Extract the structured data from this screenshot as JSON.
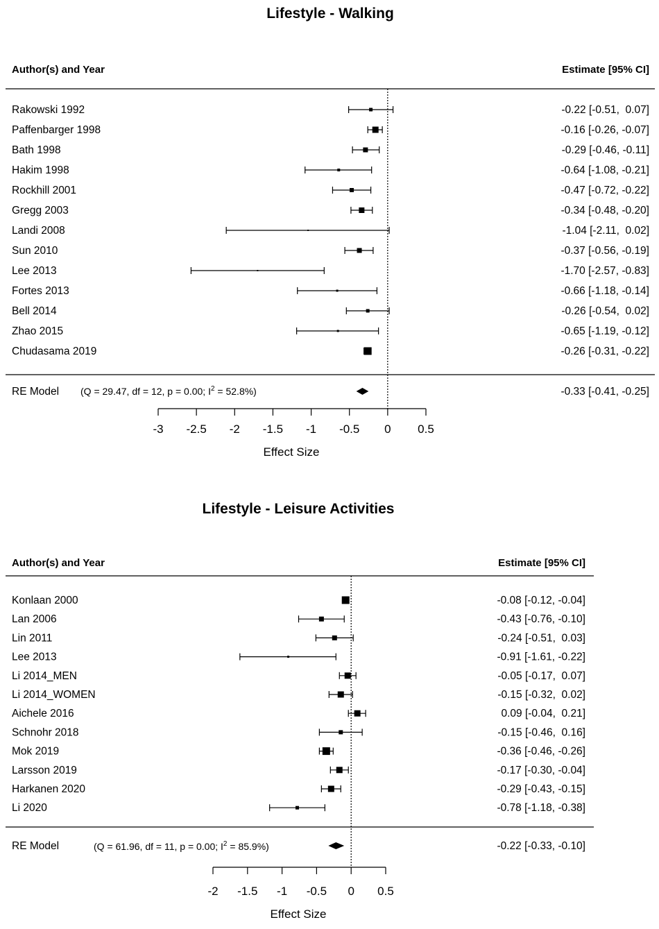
{
  "chart_data": [
    {
      "type": "forest",
      "title": "Lifestyle - Walking",
      "header_left": "Author(s) and Year",
      "header_right": "Estimate [95% CI]",
      "xlabel": "Effect Size",
      "xlim": [
        -3,
        0.5
      ],
      "xticks": [
        "-3",
        "-2.5",
        "-2",
        "-1.5",
        "-1",
        "-0.5",
        "0",
        "0.5"
      ],
      "studies": [
        {
          "label": "Rakowski 1992",
          "est": -0.22,
          "lo": -0.51,
          "hi": 0.07,
          "text": "-0.22 [-0.51,  0.07]",
          "w": 5
        },
        {
          "label": "Paffenbarger 1998",
          "est": -0.16,
          "lo": -0.26,
          "hi": -0.07,
          "text": "-0.16 [-0.26, -0.07]",
          "w": 9
        },
        {
          "label": "Bath 1998",
          "est": -0.29,
          "lo": -0.46,
          "hi": -0.11,
          "text": "-0.29 [-0.46, -0.11]",
          "w": 7
        },
        {
          "label": "Hakim 1998",
          "est": -0.64,
          "lo": -1.08,
          "hi": -0.21,
          "text": "-0.64 [-1.08, -0.21]",
          "w": 4
        },
        {
          "label": "Rockhill 2001",
          "est": -0.47,
          "lo": -0.72,
          "hi": -0.22,
          "text": "-0.47 [-0.72, -0.22]",
          "w": 6
        },
        {
          "label": "Gregg 2003",
          "est": -0.34,
          "lo": -0.48,
          "hi": -0.2,
          "text": "-0.34 [-0.48, -0.20]",
          "w": 8
        },
        {
          "label": "Landi 2008",
          "est": -1.04,
          "lo": -2.11,
          "hi": 0.02,
          "text": "-1.04 [-2.11,  0.02]",
          "w": 2
        },
        {
          "label": "Sun 2010",
          "est": -0.37,
          "lo": -0.56,
          "hi": -0.19,
          "text": "-0.37 [-0.56, -0.19]",
          "w": 7
        },
        {
          "label": "Lee 2013",
          "est": -1.7,
          "lo": -2.57,
          "hi": -0.83,
          "text": "-1.70 [-2.57, -0.83]",
          "w": 2
        },
        {
          "label": "Fortes 2013",
          "est": -0.66,
          "lo": -1.18,
          "hi": -0.14,
          "text": "-0.66 [-1.18, -0.14]",
          "w": 3
        },
        {
          "label": "Bell 2014",
          "est": -0.26,
          "lo": -0.54,
          "hi": 0.02,
          "text": "-0.26 [-0.54,  0.02]",
          "w": 5
        },
        {
          "label": "Zhao 2015",
          "est": -0.65,
          "lo": -1.19,
          "hi": -0.12,
          "text": "-0.65 [-1.19, -0.12]",
          "w": 3
        },
        {
          "label": "Chudasama 2019",
          "est": -0.26,
          "lo": -0.31,
          "hi": -0.22,
          "text": "-0.26 [-0.31, -0.22]",
          "w": 11
        }
      ],
      "summary": {
        "label": "RE Model",
        "stat_pre": "(Q = 29.47, df = 12, p = 0.00; I",
        "stat_sup": "2",
        "stat_post": " = 52.8%)",
        "est": -0.33,
        "lo": -0.41,
        "hi": -0.25,
        "text": "-0.33 [-0.41, -0.25]"
      }
    },
    {
      "type": "forest",
      "title": "Lifestyle - Leisure Activities",
      "header_left": "Author(s) and Year",
      "header_right": "Estimate [95% CI]",
      "xlabel": "Effect Size",
      "xlim": [
        -2,
        0.5
      ],
      "xticks": [
        "-2",
        "-1.5",
        "-1",
        "-0.5",
        "0",
        "0.5"
      ],
      "studies": [
        {
          "label": "Konlaan 2000",
          "est": -0.08,
          "lo": -0.12,
          "hi": -0.04,
          "text": "-0.08 [-0.12, -0.04]",
          "w": 11
        },
        {
          "label": "Lan 2006",
          "est": -0.43,
          "lo": -0.76,
          "hi": -0.1,
          "text": "-0.43 [-0.76, -0.10]",
          "w": 7
        },
        {
          "label": "Lin 2011",
          "est": -0.24,
          "lo": -0.51,
          "hi": 0.03,
          "text": "-0.24 [-0.51,  0.03]",
          "w": 7
        },
        {
          "label": "Lee 2013",
          "est": -0.91,
          "lo": -1.61,
          "hi": -0.22,
          "text": "-0.91 [-1.61, -0.22]",
          "w": 3
        },
        {
          "label": "Li 2014_MEN",
          "est": -0.05,
          "lo": -0.17,
          "hi": 0.07,
          "text": "-0.05 [-0.17,  0.07]",
          "w": 9
        },
        {
          "label": "Li 2014_WOMEN",
          "est": -0.15,
          "lo": -0.32,
          "hi": 0.02,
          "text": "-0.15 [-0.32,  0.02]",
          "w": 9
        },
        {
          "label": "Aichele 2016",
          "est": 0.09,
          "lo": -0.04,
          "hi": 0.21,
          "text": " 0.09 [-0.04,  0.21]",
          "w": 9
        },
        {
          "label": "Schnohr 2018",
          "est": -0.15,
          "lo": -0.46,
          "hi": 0.16,
          "text": "-0.15 [-0.46,  0.16]",
          "w": 6
        },
        {
          "label": "Mok 2019",
          "est": -0.36,
          "lo": -0.46,
          "hi": -0.26,
          "text": "-0.36 [-0.46, -0.26]",
          "w": 11
        },
        {
          "label": "Larsson 2019",
          "est": -0.17,
          "lo": -0.3,
          "hi": -0.04,
          "text": "-0.17 [-0.30, -0.04]",
          "w": 9
        },
        {
          "label": "Harkanen 2020",
          "est": -0.29,
          "lo": -0.43,
          "hi": -0.15,
          "text": "-0.29 [-0.43, -0.15]",
          "w": 9
        },
        {
          "label": "Li 2020",
          "est": -0.78,
          "lo": -1.18,
          "hi": -0.38,
          "text": "-0.78 [-1.18, -0.38]",
          "w": 5
        }
      ],
      "summary": {
        "label": "RE Model",
        "stat_pre": "(Q = 61.96, df = 11, p = 0.00; I",
        "stat_sup": "2",
        "stat_post": " = 85.9%)",
        "est": -0.22,
        "lo": -0.33,
        "hi": -0.1,
        "text": "-0.22 [-0.33, -0.10]"
      }
    }
  ]
}
